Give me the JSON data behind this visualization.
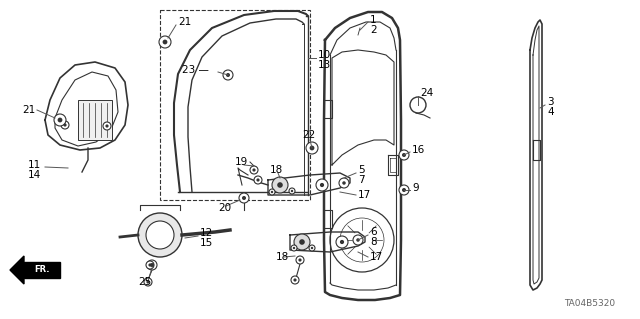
{
  "bg_color": "#ffffff",
  "diagram_color": "#333333",
  "label_color": "#000000",
  "watermark": "TA04B5320",
  "figsize": [
    6.4,
    3.19
  ],
  "dpi": 100
}
